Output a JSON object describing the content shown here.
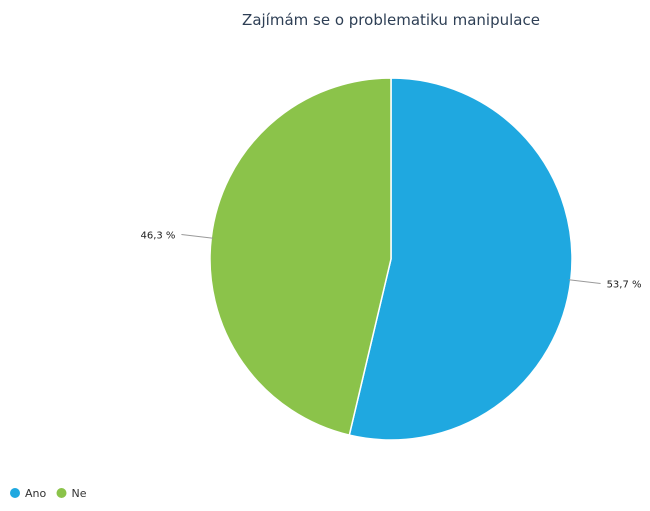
{
  "chart_data": {
    "type": "pie",
    "title": "Zajímám se o problematiku manipulace",
    "categories": [
      "Ano",
      "Ne"
    ],
    "values": [
      53.7,
      46.3
    ],
    "data_labels": [
      "53,7 %",
      "46,3 %"
    ],
    "colors": [
      "#1fa8e0",
      "#8bc34a"
    ],
    "start_angle_deg": 0,
    "direction": "clockwise",
    "legend": {
      "position": "bottom-left",
      "items": [
        {
          "label": "Ano",
          "color": "#1fa8e0"
        },
        {
          "label": "Ne",
          "color": "#8bc34a"
        }
      ]
    }
  }
}
